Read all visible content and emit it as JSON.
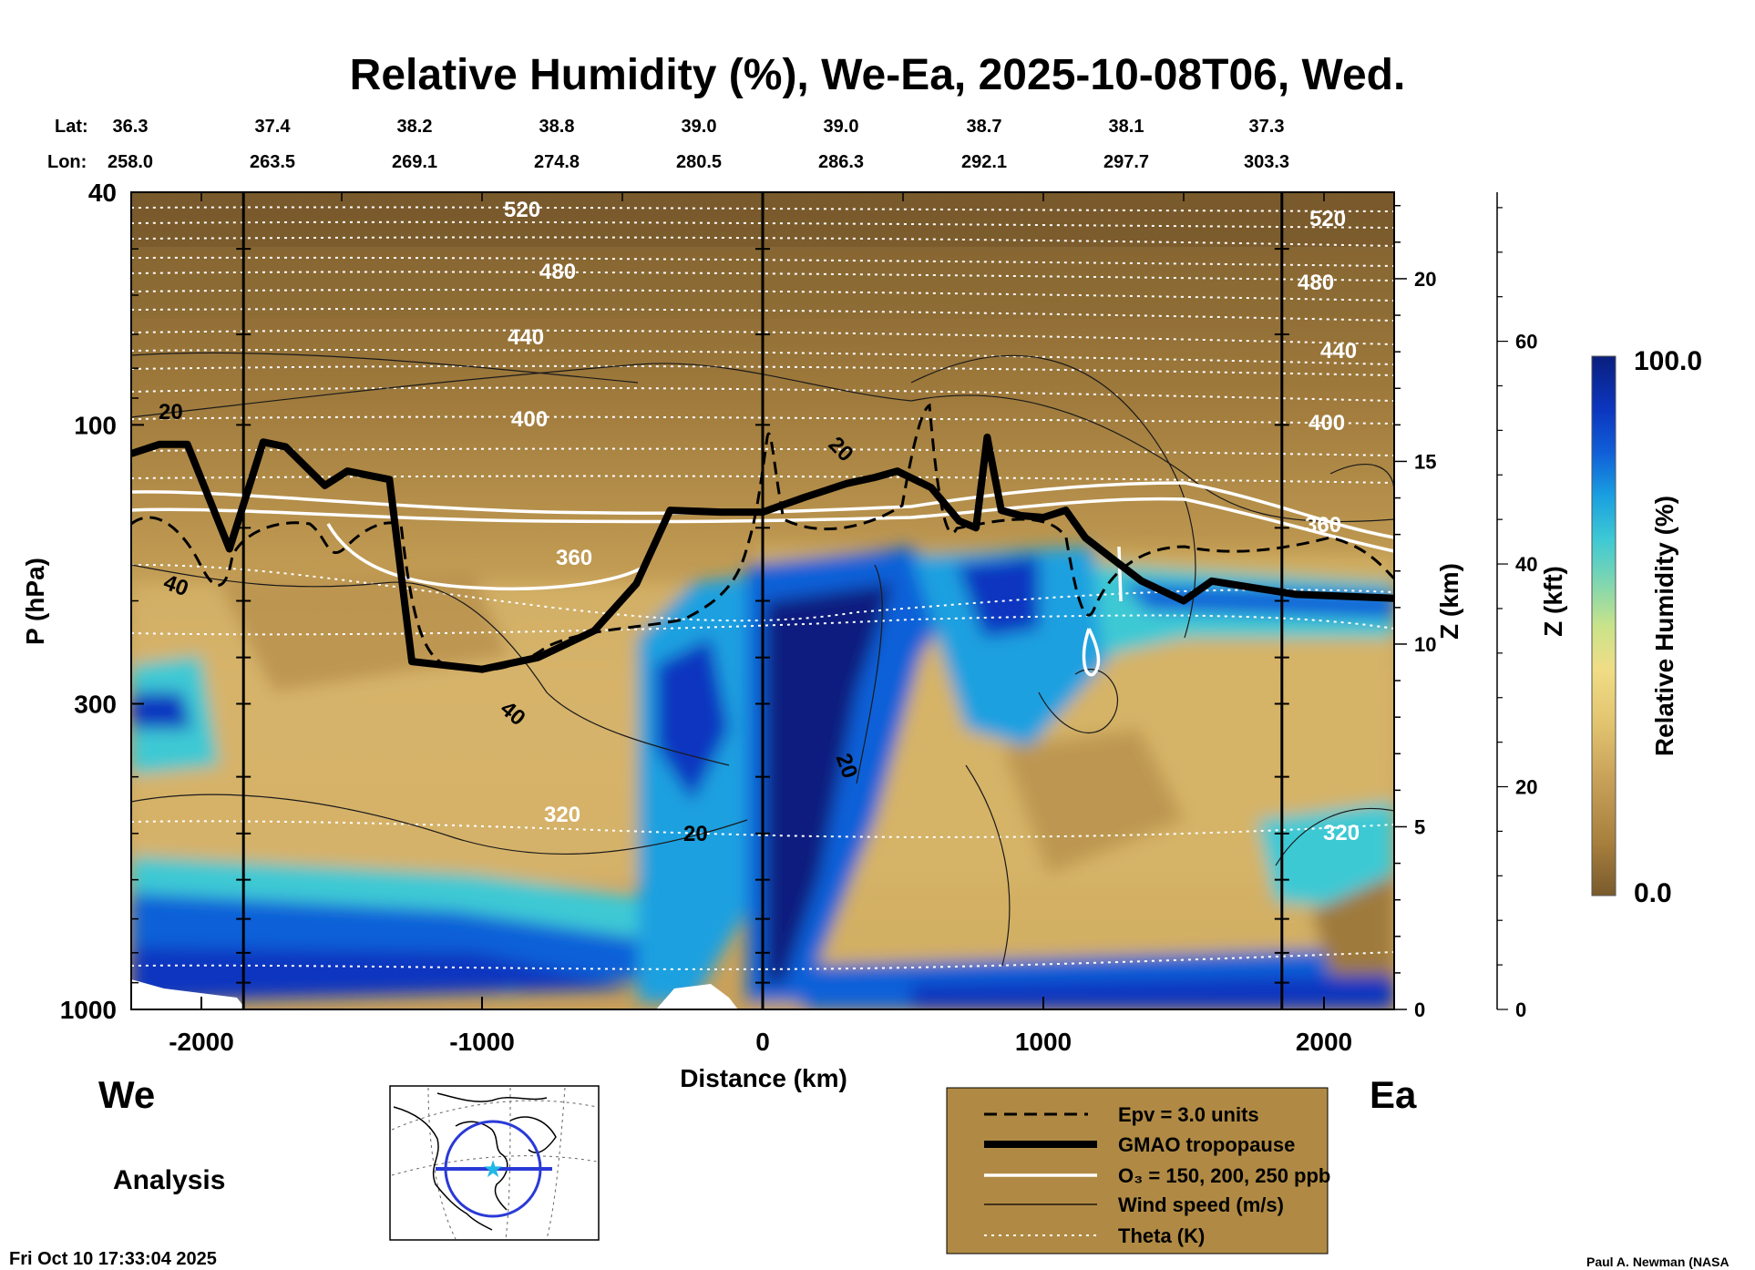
{
  "title": "Relative Humidity (%), We-Ea, 2025-10-08T06, Wed.",
  "header": {
    "lat_label": "Lat:",
    "lon_label": "Lon:",
    "lats": [
      "36.3",
      "37.4",
      "38.2",
      "38.8",
      "39.0",
      "39.0",
      "38.7",
      "38.1",
      "37.3"
    ],
    "lons": [
      "258.0",
      "263.5",
      "269.1",
      "274.8",
      "280.5",
      "286.3",
      "292.1",
      "297.7",
      "303.3"
    ]
  },
  "y_axis": {
    "label": "P (hPa)",
    "ticks": [
      "40",
      "100",
      "300",
      "1000"
    ]
  },
  "x_axis": {
    "label": "Distance (km)",
    "ticks": [
      "-2000",
      "-1000",
      "0",
      "1000",
      "2000"
    ]
  },
  "z_km_axis": {
    "label": "Z (km)",
    "ticks": [
      "0",
      "5",
      "10",
      "15",
      "20"
    ]
  },
  "z_kft_axis": {
    "label": "Z (kft)",
    "ticks": [
      "0",
      "20",
      "40",
      "60"
    ]
  },
  "colorbar": {
    "label": "Relative Humidity (%)",
    "max_label": "100.0",
    "min_label": "0.0",
    "colors": [
      "#7a5a2c",
      "#a8803e",
      "#c9a25a",
      "#e2c46f",
      "#f0dd86",
      "#c9e38a",
      "#7fd6b0",
      "#3ec9d4",
      "#1aa0e0",
      "#1060d8",
      "#0c36c0",
      "#0a1f7e"
    ]
  },
  "direction": {
    "west": "We",
    "east": "Ea"
  },
  "analysis_label": "Analysis",
  "timestamp": "Fri Oct 10 17:33:04 2025",
  "credit": "Paul A. Newman (NASA",
  "legend": [
    {
      "label": "Epv = 3.0 units",
      "style": "dashed"
    },
    {
      "label": "GMAO tropopause",
      "style": "thick"
    },
    {
      "label": "O₃ = 150, 200, 250 ppb",
      "style": "white"
    },
    {
      "label": "Wind speed (m/s)",
      "style": "thin"
    },
    {
      "label": "Theta (K)",
      "style": "dotted"
    }
  ],
  "contour_labels": {
    "theta": [
      "520",
      "480",
      "440",
      "400",
      "360",
      "320",
      "520",
      "480",
      "440",
      "400",
      "360",
      "320"
    ],
    "wind": [
      "20",
      "40",
      "40",
      "20",
      "20",
      "20"
    ]
  },
  "chart_data": {
    "type": "heatmap",
    "title": "Relative Humidity (%), We-Ea, 2025-10-08T06, Wed.",
    "xlabel": "Distance (km)",
    "ylabel": "P (hPa)",
    "xlim": [
      -2250,
      2250
    ],
    "ylim": [
      1000,
      40
    ],
    "y_scale": "log",
    "z_range": [
      0.0,
      100.0
    ],
    "vertical_markers_km": [
      -1850,
      0,
      1850
    ],
    "tropopause_gmao": {
      "x": [
        -2250,
        -2150,
        -2050,
        -1900,
        -1780,
        -1700,
        -1560,
        -1480,
        -1330,
        -1250,
        -1000,
        -800,
        -600,
        -450,
        -330,
        -150,
        0,
        150,
        300,
        400,
        480,
        600,
        700,
        760,
        800,
        850,
        920,
        1000,
        1080,
        1150,
        1250,
        1350,
        1500,
        1600,
        1750,
        1900,
        2250
      ],
      "p": [
        112,
        108,
        108,
        163,
        107,
        109,
        127,
        120,
        124,
        254,
        262,
        250,
        225,
        187,
        140,
        141,
        141,
        133,
        126,
        123,
        120,
        128,
        146,
        150,
        105,
        140,
        143,
        144,
        140,
        156,
        170,
        185,
        200,
        185,
        190,
        195,
        198
      ]
    },
    "wind_speed_contours_ms": [
      20,
      40
    ],
    "theta_contours_K": [
      320,
      360,
      400,
      440,
      480,
      520
    ],
    "ozone_contours_ppb": [
      150,
      200,
      250
    ],
    "epv_contour_units": 3.0
  }
}
